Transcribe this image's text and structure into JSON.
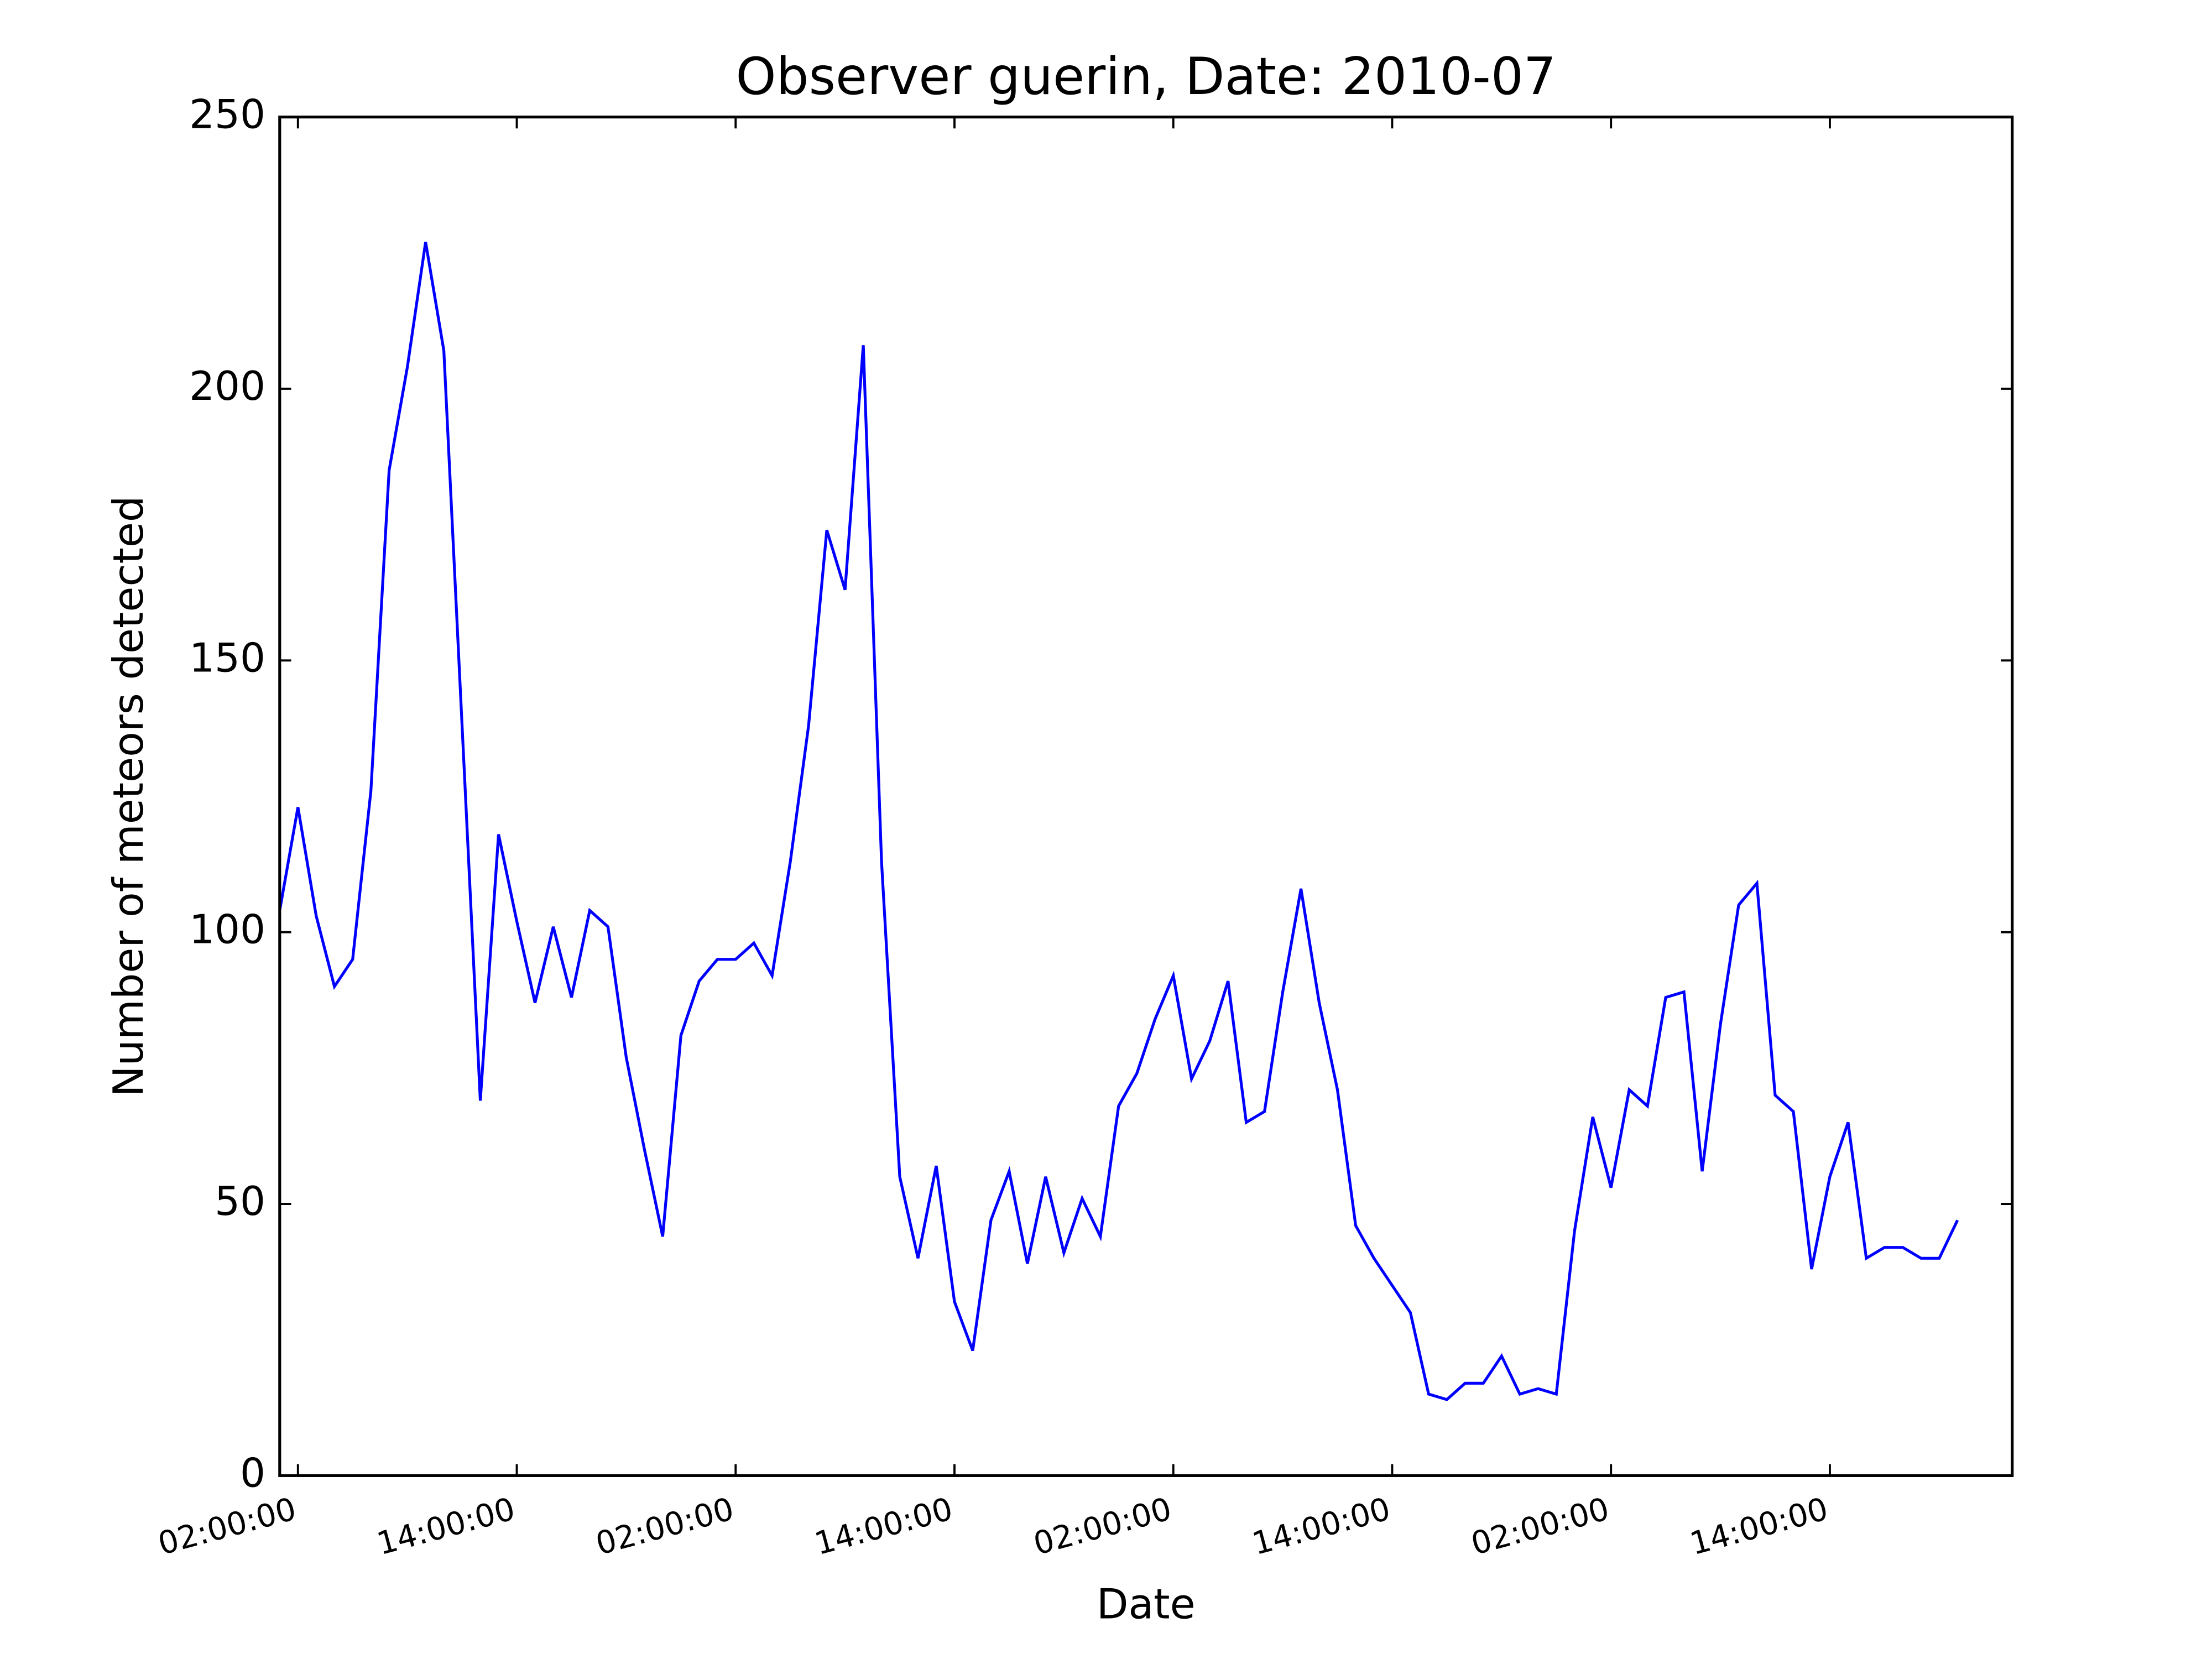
{
  "chart_data": {
    "type": "line",
    "title": "Observer guerin, Date: 2010-07",
    "xlabel": "Date",
    "ylabel": "Number of meteors detected",
    "x": [
      1,
      2,
      3,
      4,
      5,
      6,
      7,
      8,
      9,
      10,
      11,
      12,
      13,
      14,
      15,
      16,
      17,
      18,
      19,
      20,
      21,
      22,
      23,
      24,
      25,
      26,
      27,
      28,
      29,
      30,
      31,
      32,
      33,
      34,
      35,
      36,
      37,
      38,
      39,
      40,
      41,
      42,
      43,
      44,
      45,
      46,
      47,
      48,
      49,
      50,
      51,
      52,
      53,
      54,
      55,
      56,
      57,
      58,
      59,
      60,
      61,
      62,
      63,
      64,
      65,
      66,
      67,
      68,
      69,
      70,
      71,
      72,
      73,
      74,
      75,
      76,
      77,
      78,
      79,
      80,
      81,
      82,
      83,
      84,
      85,
      86,
      87,
      88,
      89,
      90,
      91,
      92,
      93
    ],
    "series": [
      {
        "name": "meteors",
        "color": "#0000ff",
        "values": [
          104,
          123,
          103,
          90,
          95,
          126,
          185,
          204,
          227,
          207,
          138,
          69,
          118,
          102,
          87,
          101,
          88,
          104,
          101,
          77,
          60,
          44,
          81,
          91,
          95,
          95,
          98,
          92,
          113,
          138,
          174,
          163,
          208,
          113,
          55,
          40,
          57,
          32,
          23,
          47,
          56,
          39,
          55,
          41,
          51,
          44,
          68,
          74,
          84,
          92,
          73,
          80,
          91,
          65,
          67,
          89,
          108,
          87,
          71,
          46,
          40,
          35,
          30,
          15,
          14,
          17,
          17,
          22,
          15,
          16,
          15,
          45,
          66,
          53,
          71,
          68,
          88,
          89,
          56,
          83,
          105,
          109,
          70,
          67,
          38,
          55,
          65,
          40,
          42,
          42,
          40,
          40,
          47
        ]
      }
    ],
    "xlim": [
      1,
      96
    ],
    "xticks": [
      {
        "value": 2,
        "label": "02:00:00"
      },
      {
        "value": 14,
        "label": "14:00:00"
      },
      {
        "value": 26,
        "label": "02:00:00"
      },
      {
        "value": 38,
        "label": "14:00:00"
      },
      {
        "value": 50,
        "label": "02:00:00"
      },
      {
        "value": 62,
        "label": "14:00:00"
      },
      {
        "value": 74,
        "label": "02:00:00"
      },
      {
        "value": 86,
        "label": "14:00:00"
      }
    ],
    "ylim": [
      0,
      250
    ],
    "yticks": [
      0,
      50,
      100,
      150,
      200,
      250
    ],
    "grid": false
  }
}
